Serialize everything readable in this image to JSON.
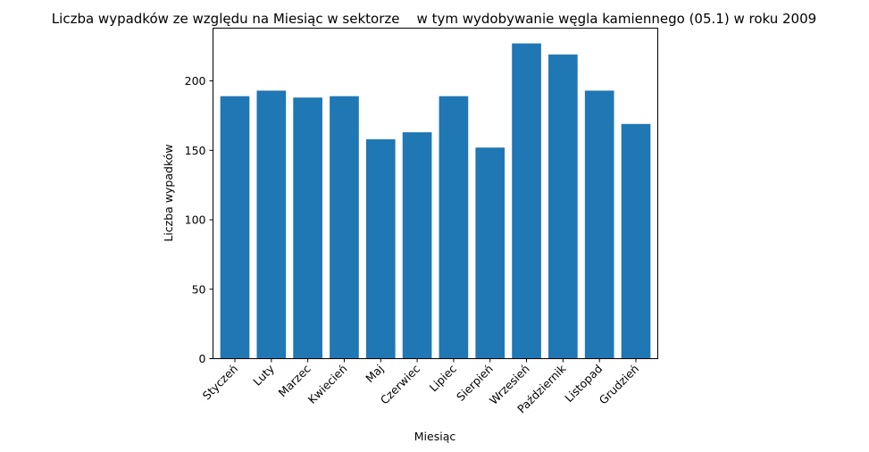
{
  "chart_data": {
    "type": "bar",
    "title": "Liczba wypadków ze względu na Miesiąc w sektorze    w tym wydobywanie węgla kamiennego (05.1) w roku 2009",
    "xlabel": "Miesiąc",
    "ylabel": "Liczba wypadków",
    "categories": [
      "Styczeń",
      "Luty",
      "Marzec",
      "Kwiecień",
      "Maj",
      "Czerwiec",
      "Lipiec",
      "Sierpień",
      "Wrzesień",
      "Październik",
      "Listopad",
      "Grudzień"
    ],
    "values": [
      189,
      193,
      188,
      189,
      158,
      163,
      189,
      152,
      227,
      219,
      193,
      169
    ],
    "ylim": [
      0,
      238
    ],
    "yticks": [
      0,
      50,
      100,
      150,
      200
    ],
    "color": "#1f77b4",
    "grid": false,
    "legend": "none"
  }
}
